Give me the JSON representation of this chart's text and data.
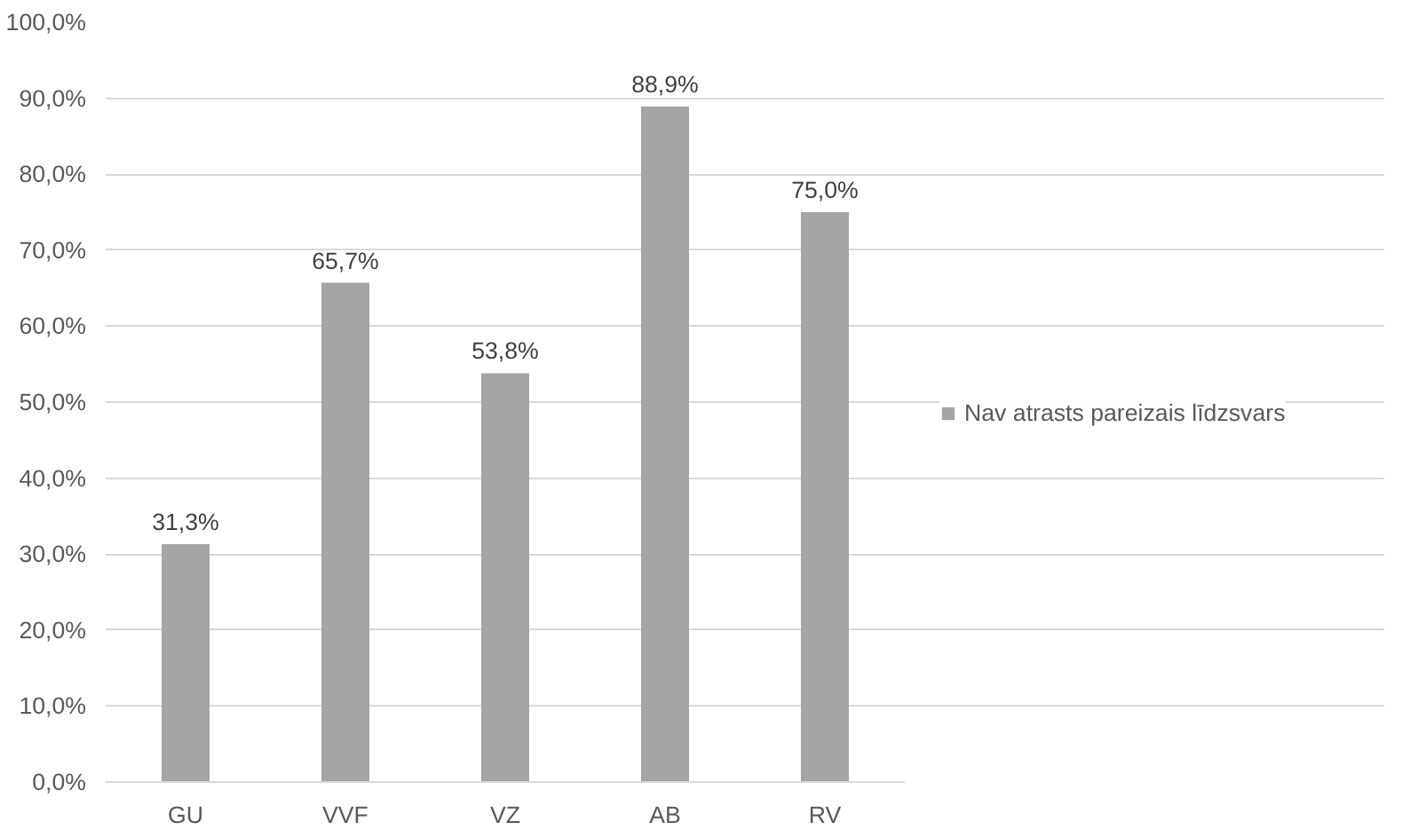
{
  "chart_data": {
    "type": "bar",
    "categories": [
      "GU",
      "VVF",
      "VZ",
      "AB",
      "RV"
    ],
    "series": [
      {
        "name": "Nav atrasts pareizais līdzsvars",
        "color": "#a5a5a5",
        "values": [
          31.3,
          65.7,
          53.8,
          88.9,
          75.0
        ],
        "value_labels": [
          "31,3%",
          "65,7%",
          "53,8%",
          "88,9%",
          "75,0%"
        ]
      }
    ],
    "ylim": [
      0,
      100
    ],
    "yticks": [
      {
        "value": 0,
        "label": "0,0%"
      },
      {
        "value": 10,
        "label": "10,0%"
      },
      {
        "value": 20,
        "label": "20,0%"
      },
      {
        "value": 30,
        "label": "30,0%"
      },
      {
        "value": 40,
        "label": "40,0%"
      },
      {
        "value": 50,
        "label": "50,0%"
      },
      {
        "value": 60,
        "label": "60,0%"
      },
      {
        "value": 70,
        "label": "70,0%"
      },
      {
        "value": 80,
        "label": "80,0%"
      },
      {
        "value": 90,
        "label": "90,0%"
      },
      {
        "value": 100,
        "label": "100,0%"
      }
    ],
    "grid": "y",
    "legend": "right"
  }
}
